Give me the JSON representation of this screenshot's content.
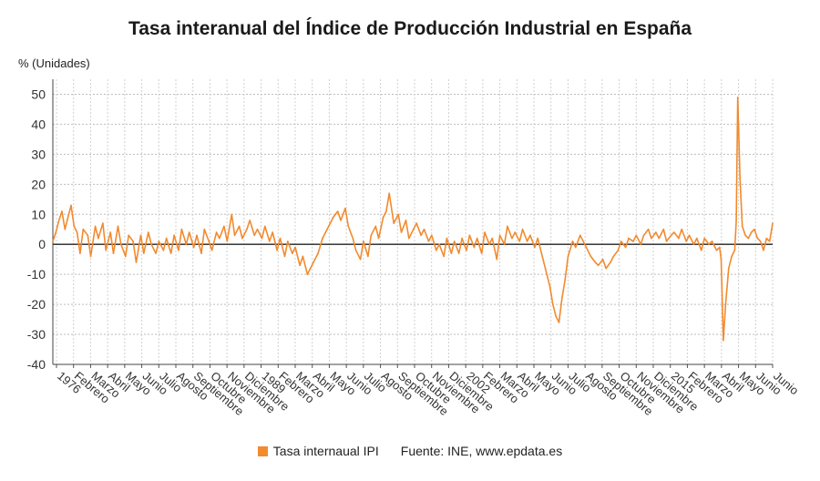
{
  "chart_data": {
    "type": "line",
    "title": "Tasa interanual del Índice de Producción Industrial en España",
    "ylabel": "% (Unidades)",
    "xlabel": "",
    "ylim": [
      -40,
      55
    ],
    "y_ticks": [
      50,
      40,
      30,
      20,
      10,
      0,
      -10,
      -20,
      -30,
      -40
    ],
    "grid": true,
    "legend_position": "bottom",
    "x_tick_labels": [
      "1976",
      "Febrero",
      "Marzo",
      "Abril",
      "Mayo",
      "Junio",
      "Julio",
      "Agosto",
      "Septiembre",
      "Octubre",
      "Noviembre",
      "Diciembre",
      "1989",
      "Febrero",
      "Marzo",
      "Abril",
      "Mayo",
      "Junio",
      "Julio",
      "Agosto",
      "Septiembre",
      "Octubre",
      "Noviembre",
      "Diciembre",
      "2002",
      "Febrero",
      "Marzo",
      "Abril",
      "Mayo",
      "Junio",
      "Julio",
      "Agosto",
      "Septiembre",
      "Octubre",
      "Noviembre",
      "Diciembre",
      "2015",
      "Febrero",
      "Marzo",
      "Abril",
      "Mayo",
      "Junio",
      "Junio"
    ],
    "x_start_year": 1976,
    "x_end_year": 2023.5,
    "series": [
      {
        "name": "Tasa internaual IPI",
        "color": "#f28a2e",
        "points": [
          [
            1976.0,
            1
          ],
          [
            1976.2,
            4
          ],
          [
            1976.4,
            8
          ],
          [
            1976.6,
            11
          ],
          [
            1976.8,
            5
          ],
          [
            1977.0,
            9
          ],
          [
            1977.2,
            13
          ],
          [
            1977.4,
            6
          ],
          [
            1977.6,
            4
          ],
          [
            1977.8,
            -3
          ],
          [
            1978.0,
            5
          ],
          [
            1978.3,
            3
          ],
          [
            1978.5,
            -4
          ],
          [
            1978.8,
            6
          ],
          [
            1979.0,
            2
          ],
          [
            1979.3,
            7
          ],
          [
            1979.5,
            -2
          ],
          [
            1979.8,
            4
          ],
          [
            1980.0,
            -3
          ],
          [
            1980.3,
            6
          ],
          [
            1980.5,
            0
          ],
          [
            1980.8,
            -4
          ],
          [
            1981.0,
            3
          ],
          [
            1981.3,
            1
          ],
          [
            1981.5,
            -6
          ],
          [
            1981.8,
            3
          ],
          [
            1982.0,
            -3
          ],
          [
            1982.3,
            4
          ],
          [
            1982.5,
            0
          ],
          [
            1982.8,
            -3
          ],
          [
            1983.0,
            1
          ],
          [
            1983.3,
            -2
          ],
          [
            1983.5,
            2
          ],
          [
            1983.8,
            -3
          ],
          [
            1984.0,
            3
          ],
          [
            1984.3,
            -2
          ],
          [
            1984.5,
            5
          ],
          [
            1984.8,
            0
          ],
          [
            1985.0,
            4
          ],
          [
            1985.3,
            -1
          ],
          [
            1985.5,
            3
          ],
          [
            1985.8,
            -3
          ],
          [
            1986.0,
            5
          ],
          [
            1986.3,
            1
          ],
          [
            1986.5,
            -2
          ],
          [
            1986.8,
            4
          ],
          [
            1987.0,
            2
          ],
          [
            1987.3,
            6
          ],
          [
            1987.5,
            1
          ],
          [
            1987.8,
            10
          ],
          [
            1988.0,
            3
          ],
          [
            1988.3,
            6
          ],
          [
            1988.5,
            2
          ],
          [
            1988.8,
            5
          ],
          [
            1989.0,
            8
          ],
          [
            1989.3,
            3
          ],
          [
            1989.5,
            5
          ],
          [
            1989.8,
            2
          ],
          [
            1990.0,
            6
          ],
          [
            1990.3,
            1
          ],
          [
            1990.5,
            4
          ],
          [
            1990.8,
            -2
          ],
          [
            1991.0,
            2
          ],
          [
            1991.3,
            -4
          ],
          [
            1991.5,
            1
          ],
          [
            1991.8,
            -3
          ],
          [
            1992.0,
            -1
          ],
          [
            1992.3,
            -7
          ],
          [
            1992.5,
            -4
          ],
          [
            1992.8,
            -10
          ],
          [
            1993.0,
            -8
          ],
          [
            1993.3,
            -5
          ],
          [
            1993.5,
            -3
          ],
          [
            1993.8,
            2
          ],
          [
            1994.0,
            4
          ],
          [
            1994.3,
            7
          ],
          [
            1994.5,
            9
          ],
          [
            1994.8,
            11
          ],
          [
            1995.0,
            8
          ],
          [
            1995.3,
            12
          ],
          [
            1995.5,
            6
          ],
          [
            1995.8,
            2
          ],
          [
            1996.0,
            -2
          ],
          [
            1996.3,
            -5
          ],
          [
            1996.5,
            1
          ],
          [
            1996.8,
            -4
          ],
          [
            1997.0,
            3
          ],
          [
            1997.3,
            6
          ],
          [
            1997.5,
            2
          ],
          [
            1997.8,
            9
          ],
          [
            1998.0,
            11
          ],
          [
            1998.2,
            17
          ],
          [
            1998.5,
            7
          ],
          [
            1998.8,
            10
          ],
          [
            1999.0,
            4
          ],
          [
            1999.3,
            8
          ],
          [
            1999.5,
            2
          ],
          [
            1999.8,
            5
          ],
          [
            2000.0,
            7
          ],
          [
            2000.3,
            3
          ],
          [
            2000.5,
            5
          ],
          [
            2000.8,
            1
          ],
          [
            2001.0,
            3
          ],
          [
            2001.3,
            -2
          ],
          [
            2001.5,
            0
          ],
          [
            2001.8,
            -4
          ],
          [
            2002.0,
            2
          ],
          [
            2002.3,
            -3
          ],
          [
            2002.5,
            1
          ],
          [
            2002.8,
            -3
          ],
          [
            2003.0,
            2
          ],
          [
            2003.3,
            -2
          ],
          [
            2003.5,
            3
          ],
          [
            2003.8,
            -1
          ],
          [
            2004.0,
            2
          ],
          [
            2004.3,
            -3
          ],
          [
            2004.5,
            4
          ],
          [
            2004.8,
            0
          ],
          [
            2005.0,
            2
          ],
          [
            2005.3,
            -5
          ],
          [
            2005.5,
            3
          ],
          [
            2005.8,
            0
          ],
          [
            2006.0,
            6
          ],
          [
            2006.3,
            2
          ],
          [
            2006.5,
            4
          ],
          [
            2006.8,
            1
          ],
          [
            2007.0,
            5
          ],
          [
            2007.3,
            1
          ],
          [
            2007.5,
            3
          ],
          [
            2007.8,
            -1
          ],
          [
            2008.0,
            2
          ],
          [
            2008.3,
            -4
          ],
          [
            2008.5,
            -8
          ],
          [
            2008.8,
            -14
          ],
          [
            2009.0,
            -20
          ],
          [
            2009.2,
            -24
          ],
          [
            2009.4,
            -26
          ],
          [
            2009.6,
            -18
          ],
          [
            2009.8,
            -12
          ],
          [
            2010.0,
            -4
          ],
          [
            2010.3,
            1
          ],
          [
            2010.5,
            -1
          ],
          [
            2010.8,
            3
          ],
          [
            2011.0,
            1
          ],
          [
            2011.3,
            -2
          ],
          [
            2011.5,
            -4
          ],
          [
            2011.8,
            -6
          ],
          [
            2012.0,
            -7
          ],
          [
            2012.3,
            -5
          ],
          [
            2012.5,
            -8
          ],
          [
            2012.8,
            -6
          ],
          [
            2013.0,
            -4
          ],
          [
            2013.3,
            -2
          ],
          [
            2013.5,
            1
          ],
          [
            2013.8,
            -1
          ],
          [
            2014.0,
            2
          ],
          [
            2014.3,
            1
          ],
          [
            2014.5,
            3
          ],
          [
            2014.8,
            0
          ],
          [
            2015.0,
            3
          ],
          [
            2015.3,
            5
          ],
          [
            2015.5,
            2
          ],
          [
            2015.8,
            4
          ],
          [
            2016.0,
            2
          ],
          [
            2016.3,
            5
          ],
          [
            2016.5,
            1
          ],
          [
            2016.8,
            3
          ],
          [
            2017.0,
            4
          ],
          [
            2017.3,
            2
          ],
          [
            2017.5,
            5
          ],
          [
            2017.8,
            1
          ],
          [
            2018.0,
            3
          ],
          [
            2018.3,
            0
          ],
          [
            2018.5,
            2
          ],
          [
            2018.8,
            -2
          ],
          [
            2019.0,
            2
          ],
          [
            2019.3,
            0
          ],
          [
            2019.5,
            1
          ],
          [
            2019.8,
            -2
          ],
          [
            2020.0,
            -1
          ],
          [
            2020.1,
            -5
          ],
          [
            2020.25,
            -32
          ],
          [
            2020.4,
            -20
          ],
          [
            2020.6,
            -8
          ],
          [
            2020.8,
            -4
          ],
          [
            2021.0,
            -2
          ],
          [
            2021.1,
            8
          ],
          [
            2021.2,
            49
          ],
          [
            2021.35,
            22
          ],
          [
            2021.5,
            6
          ],
          [
            2021.7,
            3
          ],
          [
            2021.9,
            2
          ],
          [
            2022.1,
            4
          ],
          [
            2022.3,
            5
          ],
          [
            2022.5,
            2
          ],
          [
            2022.7,
            1
          ],
          [
            2022.9,
            -2
          ],
          [
            2023.1,
            2
          ],
          [
            2023.3,
            1
          ],
          [
            2023.5,
            7
          ]
        ]
      }
    ]
  },
  "legend": {
    "series_label": "Tasa internaual IPI",
    "source": "Fuente: INE, www.epdata.es"
  }
}
